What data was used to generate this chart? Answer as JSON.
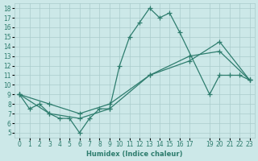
{
  "xlabel": "Humidex (Indice chaleur)",
  "bg_color": "#cce8e8",
  "line_color": "#2e7d6e",
  "grid_color": "#aacccc",
  "xlim": [
    -0.5,
    23.5
  ],
  "ylim": [
    4.5,
    18.5
  ],
  "xticks": [
    0,
    1,
    2,
    3,
    4,
    5,
    6,
    7,
    8,
    9,
    10,
    11,
    12,
    13,
    14,
    15,
    16,
    17,
    19,
    20,
    21,
    22,
    23
  ],
  "yticks": [
    5,
    6,
    7,
    8,
    9,
    10,
    11,
    12,
    13,
    14,
    15,
    16,
    17,
    18
  ],
  "line1": {
    "x": [
      0,
      1,
      2,
      3,
      4,
      5,
      6,
      7,
      8,
      9,
      10,
      11,
      12,
      13,
      14,
      15,
      16,
      19,
      20,
      21,
      22,
      23
    ],
    "y": [
      9,
      7.5,
      8,
      7,
      6.5,
      6.5,
      5,
      6.5,
      7.5,
      7.5,
      12,
      15,
      16.5,
      18,
      17,
      17.5,
      15.5,
      9,
      11,
      11,
      11,
      10.5
    ]
  },
  "line2": {
    "x": [
      0,
      3,
      6,
      9,
      13,
      17,
      20,
      23
    ],
    "y": [
      9,
      7.0,
      6.5,
      7.5,
      11.0,
      12.5,
      14.5,
      10.5
    ]
  },
  "line3": {
    "x": [
      0,
      3,
      6,
      9,
      13,
      17,
      20,
      23
    ],
    "y": [
      9,
      8.0,
      7.0,
      8.0,
      11.0,
      13.0,
      13.5,
      10.5
    ]
  }
}
